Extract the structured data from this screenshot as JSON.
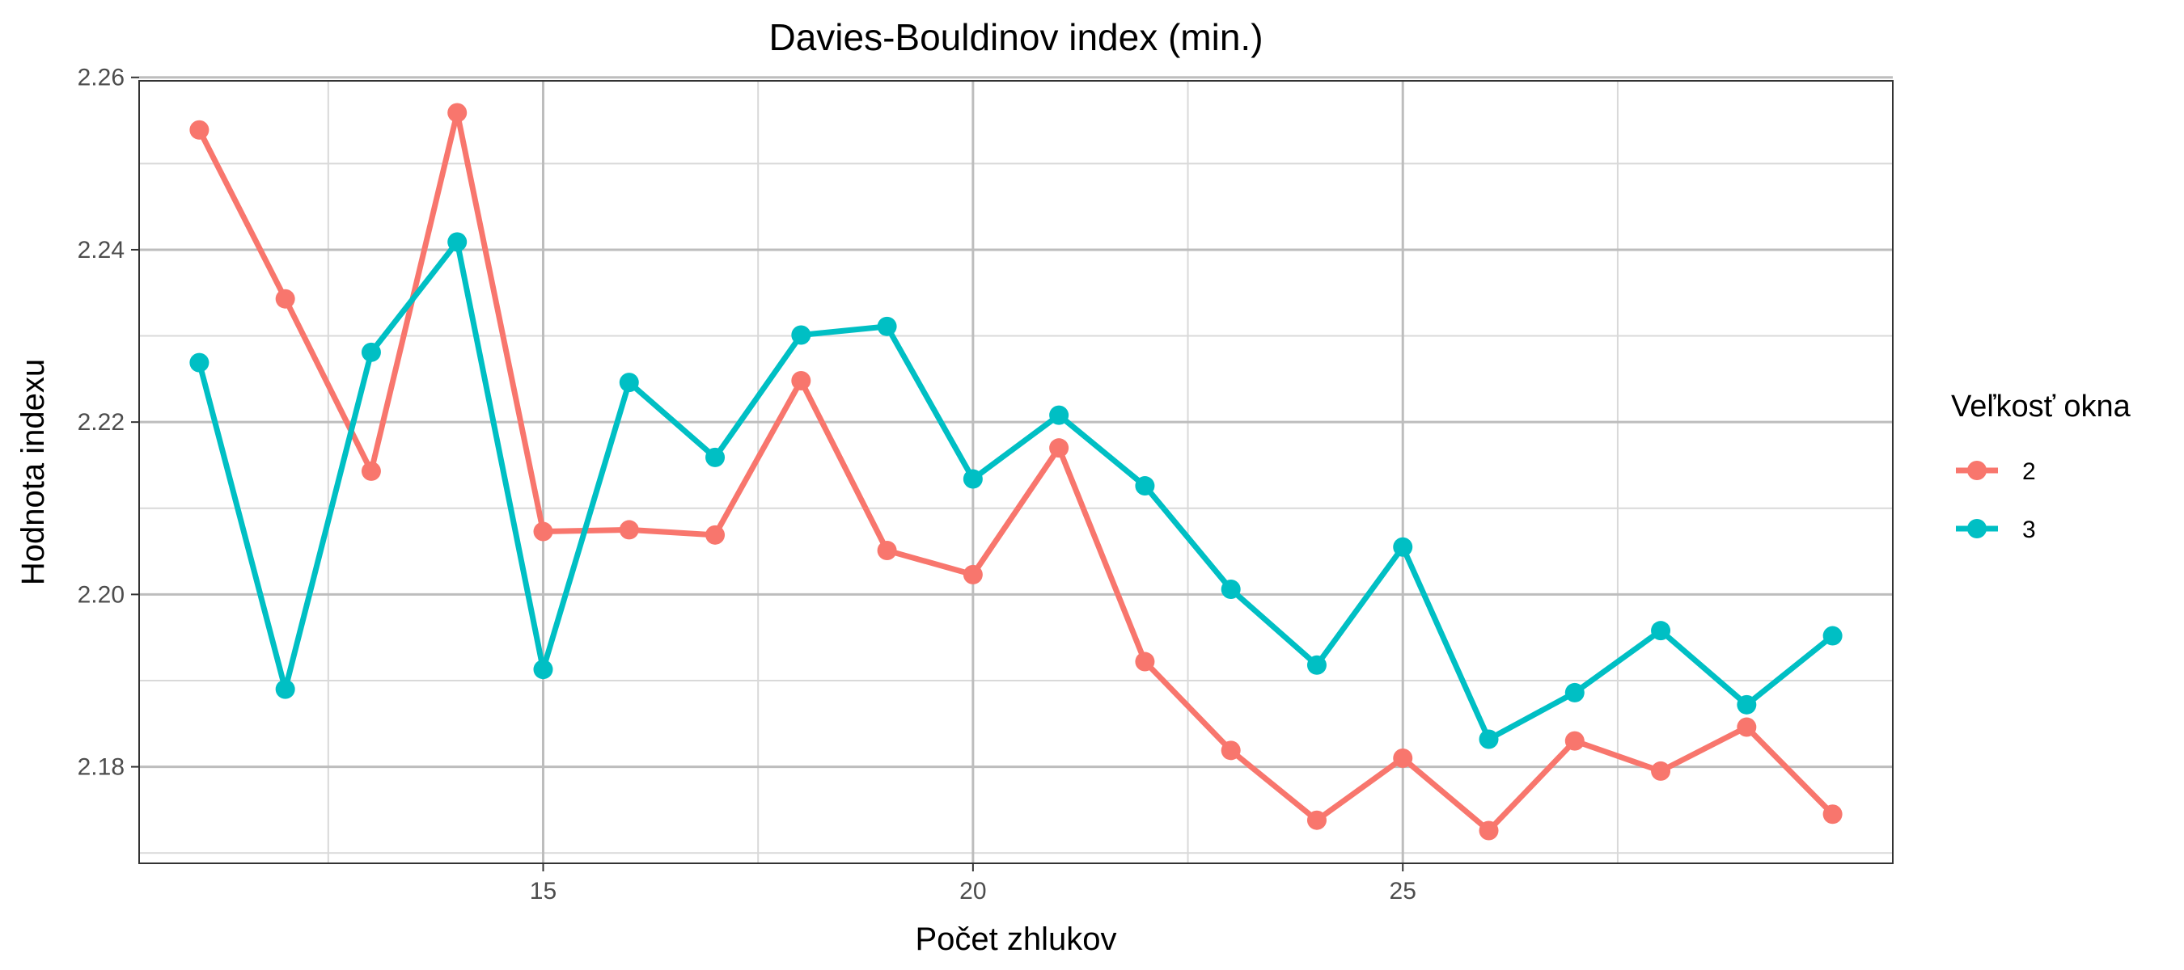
{
  "chart_data": {
    "type": "line",
    "title": "Davies-Bouldinov index (min.)",
    "xlabel": "Počet zhlukov",
    "ylabel": "Hodnota indexu",
    "xlim": [
      10.3,
      30.7
    ],
    "ylim": [
      2.1688,
      2.2596
    ],
    "x_ticks": [
      15,
      20,
      25
    ],
    "x_tick_labels": [
      "15",
      "20",
      "25"
    ],
    "y_ticks": [
      2.18,
      2.2,
      2.22,
      2.24,
      2.26
    ],
    "y_tick_labels": [
      "2.18",
      "2.20",
      "2.22",
      "2.24",
      "2.26"
    ],
    "grid": true,
    "legend": {
      "title": "Veľkosť okna",
      "position": "right"
    },
    "x": [
      11,
      12,
      13,
      14,
      15,
      16,
      17,
      18,
      19,
      20,
      21,
      22,
      23,
      24,
      25,
      26,
      27,
      28,
      29,
      30
    ],
    "series": [
      {
        "name": "2",
        "color": "#F8766D",
        "values": [
          2.2539,
          2.2343,
          2.2143,
          2.2559,
          2.2073,
          2.2075,
          2.2069,
          2.2248,
          2.2051,
          2.2023,
          2.217,
          2.1922,
          2.1819,
          2.1738,
          2.181,
          2.1726,
          2.183,
          2.1795,
          2.1846,
          2.1745
        ]
      },
      {
        "name": "3",
        "color": "#00BFC4",
        "values": [
          2.2269,
          2.189,
          2.2281,
          2.2409,
          2.1913,
          2.2246,
          2.2159,
          2.2301,
          2.2311,
          2.2134,
          2.2208,
          2.2126,
          2.2006,
          2.1918,
          2.2055,
          2.1832,
          2.1886,
          2.1958,
          2.1872,
          2.1952
        ]
      }
    ]
  }
}
